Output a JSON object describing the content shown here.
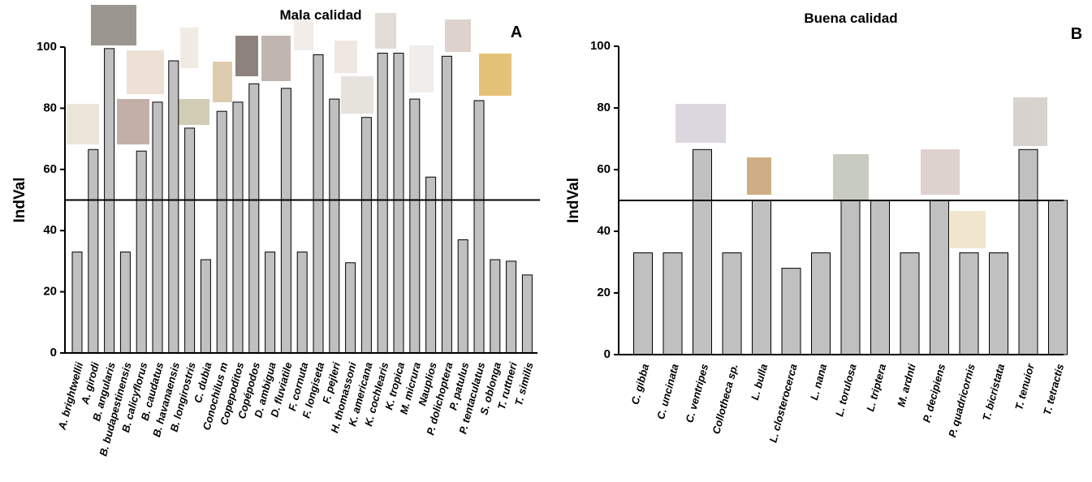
{
  "chart_data": [
    {
      "type": "bar",
      "title": "Mala calidad",
      "panel_label": "A",
      "y_label": "IndVal",
      "categories": [
        "A. brightwellii",
        "A. girodi",
        "B. angularis",
        "B. budapestinensis",
        "B. calicyflorus",
        "B. caudatus",
        "B. havanaensis",
        "B. longirostris",
        "C. dubia",
        "Conochilus m",
        "Copepoditos",
        "Copépodos",
        "D. ambigua",
        "D. fluviatile",
        "F. cornuta",
        "F. longiseta",
        "F. pejleri",
        "H. thomassoni",
        "K. americana",
        "K. cochlearis",
        "K. tropica",
        "M. micrura",
        "Nauplios",
        "P. dolichoptera",
        "P. patulus",
        "P. tentaculatus",
        "S. oblonga",
        "T. ruttneri",
        "T. similis"
      ],
      "values": [
        33,
        66.5,
        99.5,
        33,
        66,
        82,
        95.5,
        73.5,
        30.5,
        79,
        82,
        88,
        33,
        86.5,
        33,
        97.5,
        83,
        29.5,
        77,
        98,
        98,
        83,
        57.5,
        97,
        37,
        82.5,
        30.5,
        30,
        25.5
      ],
      "color": "#c0c0c0",
      "threshold": 50,
      "ylim": [
        0,
        100
      ],
      "yticks": [
        0,
        20,
        40,
        60,
        80,
        100
      ]
    },
    {
      "type": "bar",
      "title": "Buena calidad",
      "panel_label": "B",
      "y_label": "IndVal",
      "categories": [
        "C. gibba",
        "C. uncinata",
        "C. ventripes",
        "Collotheca sp.",
        "L. bulla",
        "L. closterocerca",
        "L. nana",
        "L. torulosa",
        "L. triptera",
        "M. ardnti",
        "P. decipiens",
        "P. quadricornis",
        "T. bicristata",
        "T. tenuior",
        "T. tetractis"
      ],
      "values": [
        33,
        33,
        66.5,
        33,
        50,
        28,
        33,
        50,
        50,
        33,
        50,
        33,
        33,
        66.5,
        50
      ],
      "color": "#c0c0c0",
      "threshold": 50,
      "ylim": [
        0,
        100
      ],
      "yticks": [
        0,
        20,
        40,
        60,
        80,
        100
      ]
    }
  ]
}
